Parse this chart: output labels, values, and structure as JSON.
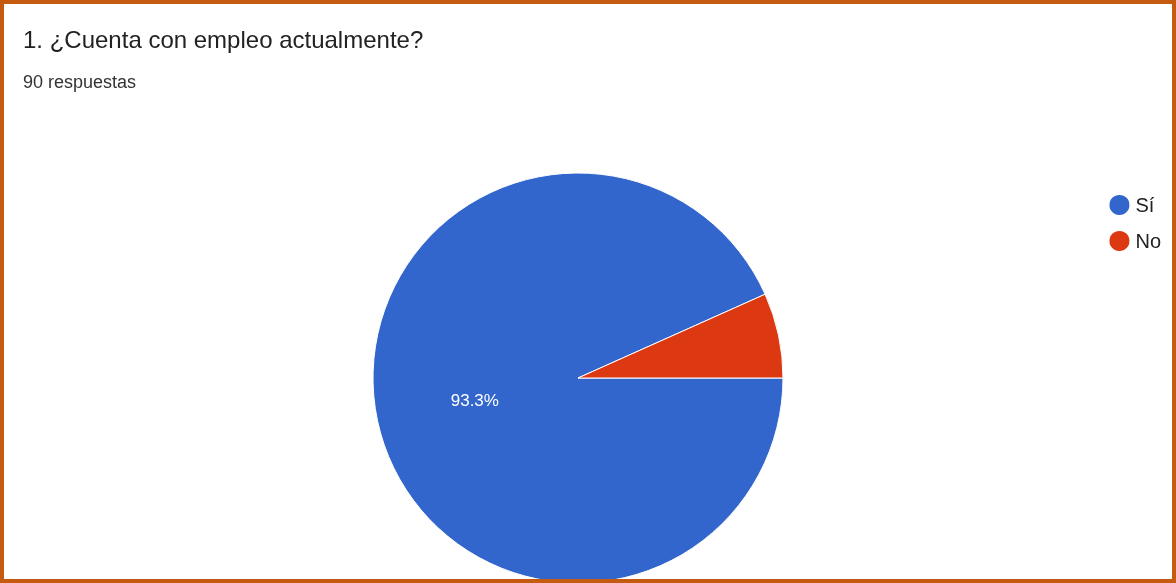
{
  "chart_data": {
    "type": "pie",
    "title": "1. ¿Cuenta con empleo actualmente?",
    "subtitle": "90 respuestas",
    "categories": [
      "Sí",
      "No"
    ],
    "values": [
      93.3,
      6.7
    ],
    "colors": [
      "#3366cc",
      "#dc3912"
    ],
    "value_labels": [
      "93.3%",
      null
    ],
    "legend": "top right"
  }
}
